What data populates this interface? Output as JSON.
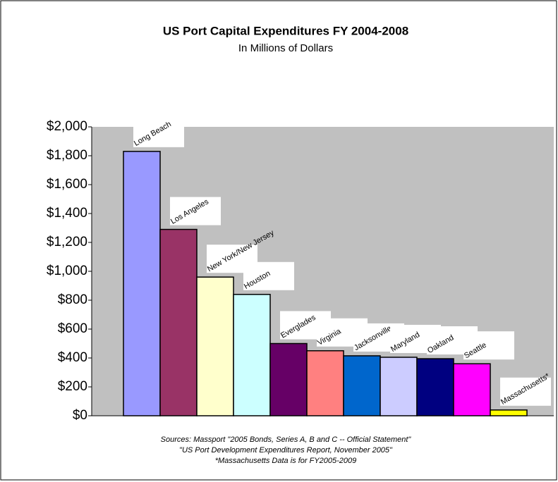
{
  "chart_data": {
    "type": "bar",
    "title": "US Port Capital Expenditures FY 2004-2008",
    "subtitle": "In Millions of Dollars",
    "categories": [
      "Long Beach",
      "Los Angeles",
      "New York/New Jersey",
      "Houston",
      "Everglades",
      "Virginia",
      "Jacksonville",
      "Maryland",
      "Oakland",
      "Seattle",
      "Massachusetts*"
    ],
    "values": [
      1830,
      1290,
      960,
      840,
      500,
      450,
      415,
      405,
      395,
      360,
      40
    ],
    "colors": [
      "#9999ff",
      "#993366",
      "#ffffcc",
      "#ccffff",
      "#660066",
      "#ff8080",
      "#0066cc",
      "#ccccff",
      "#000080",
      "#ff00ff",
      "#ffff00"
    ],
    "ylim": [
      0,
      2000
    ],
    "yticks": [
      {
        "value": 0,
        "label": "$0"
      },
      {
        "value": 200,
        "label": "$200"
      },
      {
        "value": 400,
        "label": "$400"
      },
      {
        "value": 600,
        "label": "$600"
      },
      {
        "value": 800,
        "label": "$800"
      },
      {
        "value": 1000,
        "label": "$1,000"
      },
      {
        "value": 1200,
        "label": "$1,200"
      },
      {
        "value": 1400,
        "label": "$1,400"
      },
      {
        "value": 1600,
        "label": "$1,600"
      },
      {
        "value": 1800,
        "label": "$1,800"
      },
      {
        "value": 2000,
        "label": "$2,000"
      }
    ],
    "grid": false,
    "notes": [
      "Sources: Massport \"2005 Bonds, Series A, B and C -- Official Statement\"",
      "\"US Port Development Expenditures Report, November 2005\"",
      "*Massachusetts Data is for FY2005-2009"
    ]
  }
}
